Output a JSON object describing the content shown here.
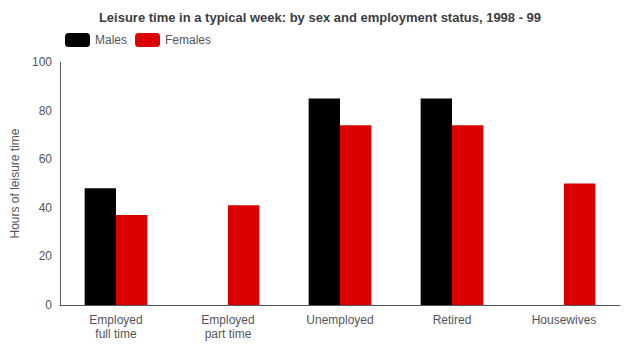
{
  "chart_data": {
    "type": "bar",
    "title": "Leisure time in a typical week: by sex and employment status, 1998 - 99",
    "ylabel": "Hours of leisure time",
    "categories": [
      "Employed\nfull time",
      "Employed\npart time",
      "Unemployed",
      "Retired",
      "Housewives"
    ],
    "series": [
      {
        "name": "Males",
        "color": "#000000",
        "values": [
          48,
          0,
          85,
          85,
          0
        ]
      },
      {
        "name": "Females",
        "color": "#dd0000",
        "values": [
          37,
          41,
          74,
          74,
          50
        ]
      }
    ],
    "ylim": [
      0,
      100
    ],
    "yticks": [
      0,
      20,
      40,
      60,
      80,
      100
    ],
    "grid": false,
    "legend": "upper left"
  }
}
